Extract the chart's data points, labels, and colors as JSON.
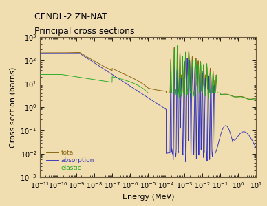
{
  "title_line1": "CENDL-2 ZN-NAT",
  "title_line2": "Principal cross sections",
  "xlabel": "Energy (MeV)",
  "ylabel": "Cross section (barns)",
  "xlim_log": [
    -11,
    1
  ],
  "ylim_log": [
    -3,
    3
  ],
  "background_color": "#f0ddb0",
  "plot_bg_color": "#f0ddb0",
  "total_color": "#8B6914",
  "absorption_color": "#3333bb",
  "elastic_color": "#22aa22",
  "legend_labels": [
    "total",
    "absorption",
    "elastic"
  ],
  "title_fontsize": 9,
  "axis_fontsize": 8,
  "tick_fontsize": 7
}
